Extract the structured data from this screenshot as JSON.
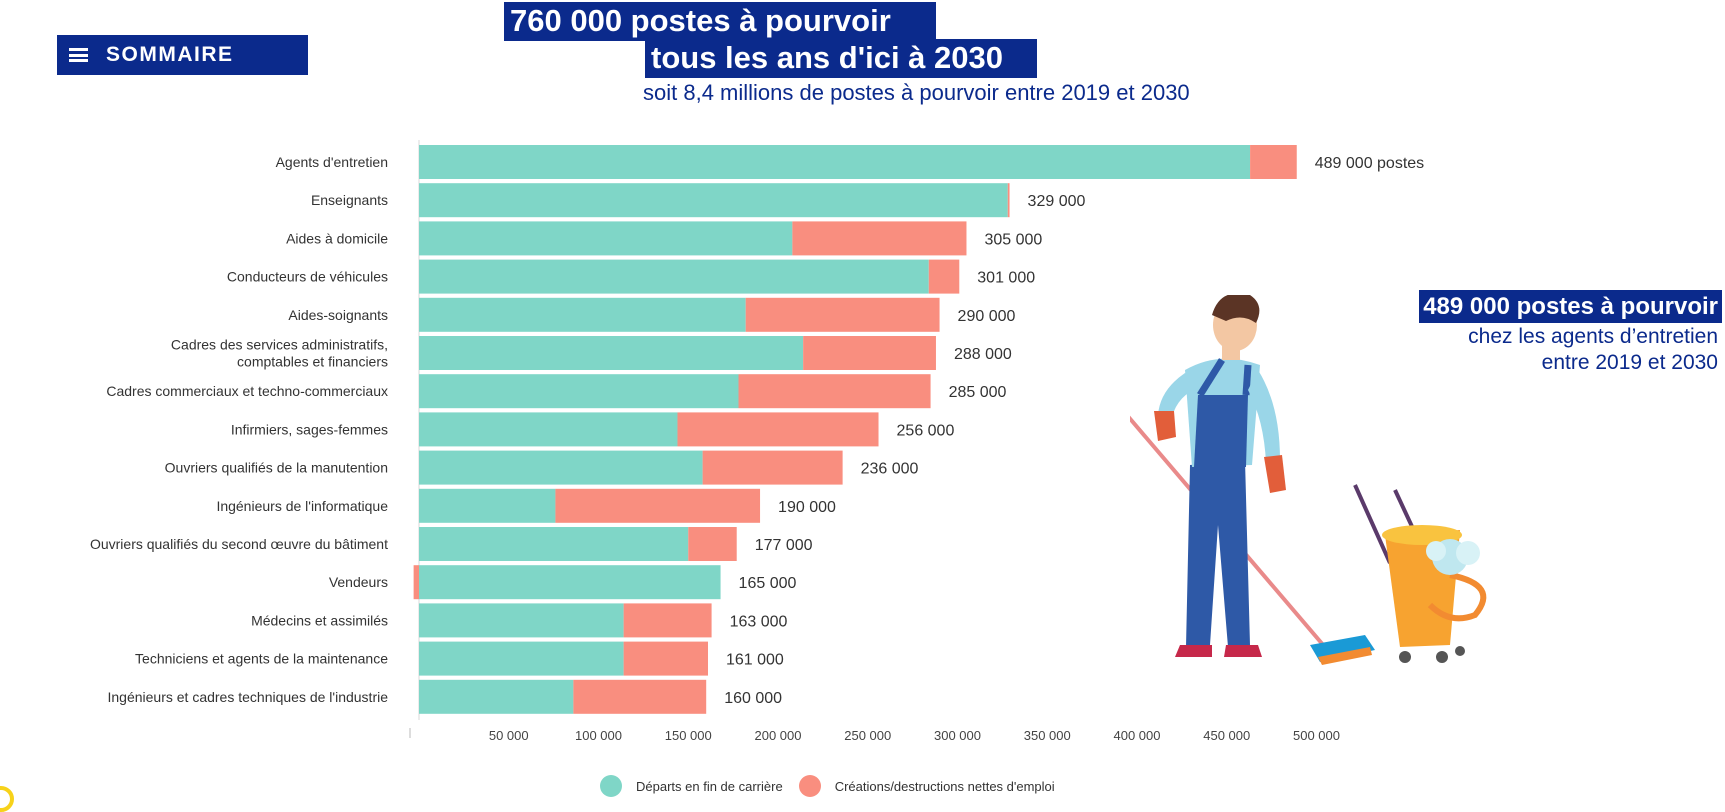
{
  "nav": {
    "sommaire_label": "SOMMAIRE"
  },
  "header": {
    "title_line1": "760 000 postes à pourvoir",
    "title_line2": "tous les ans d'ici à 2030",
    "subtitle": "soit 8,4 millions de postes à pourvoir entre 2019 et 2030"
  },
  "highlight": {
    "line1": "489 000 postes à pourvoir",
    "line2": "chez les agents d’entretien",
    "line3": "entre 2019 et 2030"
  },
  "colors": {
    "departs": "#7fd6c7",
    "creations": "#f98e7f",
    "brand": "#0b2a8c"
  },
  "chart_data": {
    "type": "bar",
    "orientation": "horizontal",
    "stacked": true,
    "categories": [
      "Agents d'entretien",
      "Enseignants",
      "Aides à domicile",
      "Conducteurs de véhicules",
      "Aides-soignants",
      "Cadres des services administratifs,\ncomptables et financiers",
      "Cadres commerciaux et techno-commerciaux",
      "Infirmiers, sages-femmes",
      "Ouvriers qualifiés de la manutention",
      "Ingénieurs de l'informatique",
      "Ouvriers qualifiés du second œuvre du bâtiment",
      "Vendeurs",
      "Médecins et assimilés",
      "Techniciens et agents de la maintenance",
      "Ingénieurs et cadres techniques de l'industrie"
    ],
    "series": [
      {
        "name": "Départs en fin de carrière",
        "values": [
          463000,
          328000,
          208000,
          284000,
          182000,
          214000,
          178000,
          144000,
          158000,
          76000,
          150000,
          168000,
          114000,
          114000,
          86000
        ]
      },
      {
        "name": "Créations/destructions nettes d'emploi",
        "values": [
          26000,
          1000,
          97000,
          17000,
          108000,
          74000,
          107000,
          112000,
          78000,
          114000,
          27000,
          -3000,
          49000,
          47000,
          74000
        ]
      }
    ],
    "value_labels": [
      "489 000 postes",
      "329 000",
      "305 000",
      "301 000",
      "290 000",
      "288 000",
      "285 000",
      "256 000",
      "236 000",
      "190 000",
      "177 000",
      "165 000",
      "163 000",
      "161 000",
      "160 000"
    ],
    "x_ticks": [
      "50 000",
      "100 000",
      "150 000",
      "200 000",
      "250 000",
      "300 000",
      "350 000",
      "400 000",
      "450 000",
      "500 000"
    ],
    "x_tick_values": [
      50000,
      100000,
      150000,
      200000,
      250000,
      300000,
      350000,
      400000,
      450000,
      500000
    ],
    "xlim": [
      0,
      500000
    ],
    "legend_position": "bottom-center"
  }
}
